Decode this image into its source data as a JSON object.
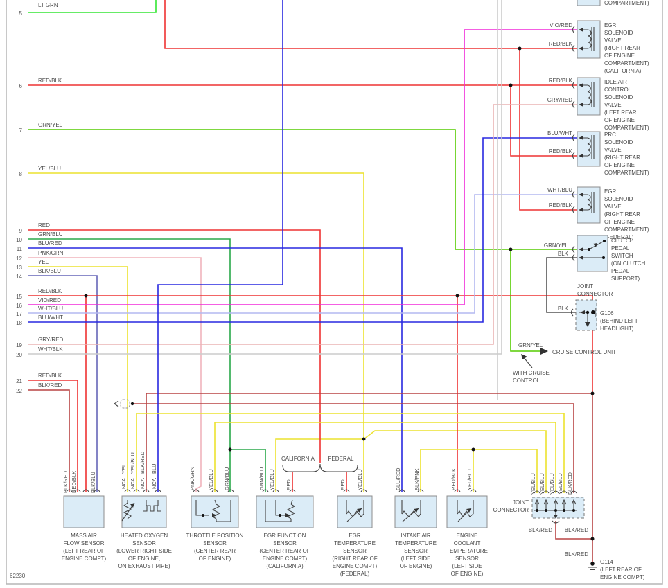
{
  "diagram_id": "62230",
  "colors": {
    "lt_grn": "#33e633",
    "grn_yel": "#55cc00",
    "grn_blu": "#2aa84a",
    "yellow": "#ece22e",
    "red": "#ee3232",
    "dark_red": "#b84444",
    "blue": "#2828e0",
    "blk_blu": "#6666b8",
    "pnk_grn": "#f0b4bc",
    "vio_red": "#f028d8",
    "wht_blu": "#b4b8f0",
    "wht_blk": "#cccccc",
    "gry_red": "#eab4b4",
    "blk": "#555555",
    "box_fill": "#dbecf7"
  },
  "ecu_pins": [
    {
      "num": "5",
      "label": "LT GRN"
    },
    {
      "num": "6",
      "label": "RED/BLK"
    },
    {
      "num": "7",
      "label": "GRN/YEL"
    },
    {
      "num": "8",
      "label": "YEL/BLU"
    },
    {
      "num": "9",
      "label": "RED"
    },
    {
      "num": "10",
      "label": "GRN/BLU"
    },
    {
      "num": "11",
      "label": "BLU/RED"
    },
    {
      "num": "12",
      "label": "PNK/GRN"
    },
    {
      "num": "13",
      "label": "YEL"
    },
    {
      "num": "14",
      "label": "BLK/BLU"
    },
    {
      "num": "15",
      "label": "RED/BLK"
    },
    {
      "num": "16",
      "label": "VIO/RED"
    },
    {
      "num": "17",
      "label": "WHT/BLU"
    },
    {
      "num": "18",
      "label": "BLU/WHT"
    },
    {
      "num": "19",
      "label": "GRY/RED"
    },
    {
      "num": "20",
      "label": "WHT/BLK"
    },
    {
      "num": "21",
      "label": "RED/BLK"
    },
    {
      "num": "22",
      "label": "BLK/RED"
    }
  ],
  "top_partial": {
    "line": "COMPARTMENT)"
  },
  "components": {
    "egr_ca": {
      "wire1": "VIO/RED",
      "wire2": "RED/BLK",
      "name": [
        "EGR",
        "SOLENOID",
        "VALVE",
        "(RIGHT REAR",
        "OF ENGINE",
        "COMPARTMENT)",
        "(CALIFORNIA)"
      ]
    },
    "iac": {
      "wire1": "RED/BLK",
      "wire2": "GRY/RED",
      "name": [
        "IDLE AIR",
        "CONTROL",
        "SOLENOID",
        "VALVE",
        "(LEFT REAR",
        "OF ENGINE",
        "COMPARTMENT)"
      ]
    },
    "prc": {
      "wire1": "BLU/WHT",
      "wire2": "RED/BLK",
      "name": [
        "PRC",
        "SOLENOID",
        "VALVE",
        "(RIGHT REAR",
        "OF ENGINE",
        "COMPARTMENT)"
      ]
    },
    "egr_fed": {
      "wire1": "WHT/BLU",
      "wire2": "RED/BLK",
      "name": [
        "EGR",
        "SOLENOID",
        "VALVE",
        "(RIGHT REAR",
        "OF ENGINE",
        "COMPARTMENT)",
        "(FEDERAL)"
      ]
    },
    "clutch": {
      "wire1": "GRN/YEL",
      "wire2": "BLK",
      "name": [
        "CLUTCH",
        "PEDAL",
        "SWITCH",
        "(ON CLUTCH",
        "PEDAL",
        "SUPPORT)"
      ]
    },
    "g106": {
      "title": [
        "JOINT",
        "CONNECTOR"
      ],
      "wire": "BLK",
      "name": [
        "G106",
        "(BEHIND LEFT",
        "HEADLIGHT)"
      ]
    },
    "cruise": {
      "wire": "GRN/YEL",
      "unit": "CRUISE CONTROL UNIT",
      "note": [
        "WITH CRUISE",
        "CONTROL"
      ]
    }
  },
  "branch": {
    "california": "CALIFORNIA",
    "federal": "FEDERAL"
  },
  "sensors": {
    "maf": {
      "wires": [
        "BLK/RED",
        "RED/BLK",
        "BLK/BLU"
      ],
      "name": [
        "MASS AIR",
        "FLOW SENSOR",
        "(LEFT REAR OF",
        "ENGINE COMPT)"
      ]
    },
    "o2": {
      "wires": [
        "YEL",
        "YEL/BLU",
        "BLK/RED",
        "BLU"
      ],
      "nca": "NCA",
      "name": [
        "HEATED OXYGEN",
        "SENSOR",
        "(LOWER RIGHT SIDE",
        "OF ENGINE,",
        "ON EXHAUST PIPE)"
      ]
    },
    "tps": {
      "wires": [
        "PNK/GRN",
        "YEL/BLU",
        "GRN/BLU"
      ],
      "name": [
        "THROTTLE POSITION",
        "SENSOR",
        "(CENTER REAR",
        "OF ENGINE)"
      ]
    },
    "egr_fn": {
      "wires": [
        "GRN/BLU",
        "YEL/BLU",
        "RED"
      ],
      "name": [
        "EGR FUNCTION",
        "SENSOR",
        "(CENTER REAR OF",
        "ENGINE COMPT)",
        "(CALIFORNIA)"
      ]
    },
    "egr_temp": {
      "wires": [
        "RED",
        "YEL/BLU"
      ],
      "name": [
        "EGR",
        "TEMPERATURE",
        "SENSOR",
        "(RIGHT REAR OF",
        "ENGINE COMPT)",
        "(FEDERAL)"
      ]
    },
    "iat": {
      "wires": [
        "BLU/RED",
        "BLK/PNK"
      ],
      "name": [
        "INTAKE AIR",
        "TEMPERATURE",
        "SENSOR",
        "(LEFT SIDE",
        "OF ENGINE)"
      ]
    },
    "ect": {
      "wires": [
        "RED/BLK",
        "YEL/BLU"
      ],
      "name": [
        "ENGINE",
        "COOLANT",
        "TEMPERATURE",
        "SENSOR",
        "(LEFT SIDE",
        "OF ENGINE)"
      ]
    }
  },
  "joint_connector": {
    "title": [
      "JOINT",
      "CONNECTOR"
    ],
    "wires": [
      "YEL/BLU",
      "YEL/BLU",
      "YEL/BLU",
      "YEL/BLU",
      "BLK/RED"
    ],
    "out_label": "BLK/RED",
    "in_label": "BLK/RED",
    "gnd_label": "BLK/RED"
  },
  "g114": {
    "name": [
      "G114",
      "(LEFT REAR OF",
      "ENGINE COMPT)"
    ]
  }
}
